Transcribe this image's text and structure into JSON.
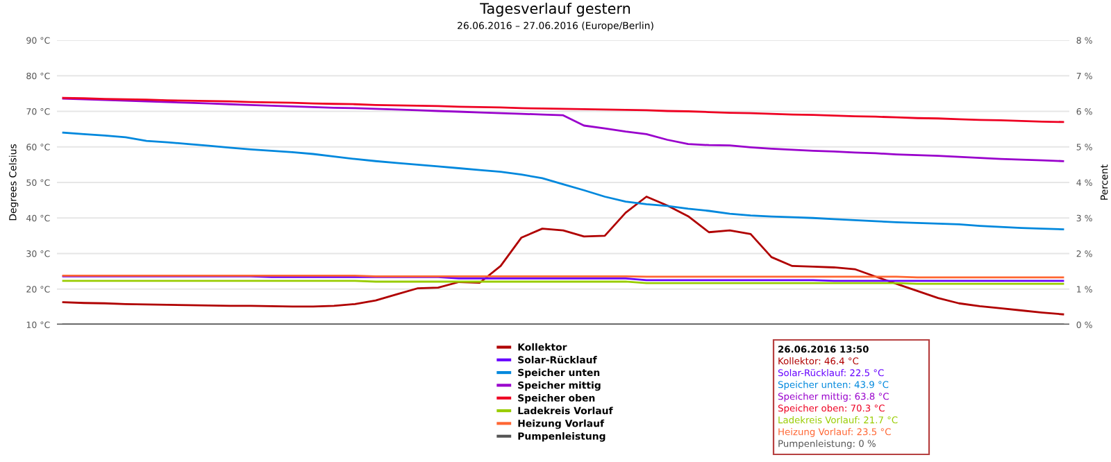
{
  "chart_data": {
    "type": "line",
    "title": "Tagesverlauf gestern",
    "subtitle": "26.06.2016 – 27.06.2016 (Europe/Berlin)",
    "ylabel": "Degrees Celsius",
    "y2label": "Percent",
    "categories": [
      null,
      null,
      null,
      null,
      null,
      null,
      null,
      null,
      null,
      null,
      null,
      null,
      null,
      null,
      null,
      null,
      null,
      null,
      null,
      null,
      null,
      null,
      null,
      null,
      null,
      null,
      null,
      null,
      null,
      null,
      null,
      null,
      null,
      null,
      null,
      null,
      null,
      null,
      null,
      null,
      null,
      null,
      null,
      null,
      null,
      null,
      null,
      null,
      null
    ],
    "series": [
      {
        "name": "Kollektor",
        "color": "#b00000",
        "values": [
          16.3,
          16.1,
          16.0,
          15.8,
          15.7,
          15.6,
          15.5,
          15.4,
          15.3,
          15.3,
          15.2,
          15.1,
          15.1,
          15.3,
          15.8,
          16.8,
          18.5,
          20.2,
          20.4,
          22.0,
          21.8,
          26.5,
          34.5,
          37.0,
          36.5,
          34.8,
          35.0,
          41.5,
          46.0,
          43.5,
          40.5,
          36.0,
          36.5,
          35.5,
          29.0,
          26.5,
          26.3,
          26.1,
          25.6,
          23.5,
          21.5,
          19.5,
          17.5,
          16.0,
          15.2,
          14.6,
          14.0,
          13.4,
          12.9
        ]
      },
      {
        "name": "Solar-Rücklauf",
        "color": "#6600ff",
        "values": [
          23.6,
          23.6,
          23.6,
          23.6,
          23.6,
          23.6,
          23.6,
          23.6,
          23.6,
          23.6,
          23.4,
          23.4,
          23.4,
          23.4,
          23.4,
          23.4,
          23.4,
          23.4,
          23.4,
          23.0,
          23.0,
          23.0,
          23.0,
          23.0,
          23.0,
          23.0,
          23.0,
          23.0,
          22.5,
          22.5,
          22.5,
          22.5,
          22.5,
          22.5,
          22.5,
          22.5,
          22.5,
          22.3,
          22.3,
          22.3,
          22.3,
          22.3,
          22.3,
          22.3,
          22.3,
          22.3,
          22.3,
          22.3,
          22.3
        ]
      },
      {
        "name": "Speicher unten",
        "color": "#0088dd",
        "values": [
          64.0,
          63.6,
          63.2,
          62.7,
          61.7,
          61.3,
          60.8,
          60.3,
          59.8,
          59.3,
          58.9,
          58.5,
          58.0,
          57.3,
          56.6,
          56.0,
          55.5,
          55.0,
          54.5,
          54.0,
          53.5,
          53.0,
          52.2,
          51.2,
          49.5,
          47.8,
          46.0,
          44.6,
          43.9,
          43.4,
          42.6,
          42.0,
          41.2,
          40.7,
          40.4,
          40.2,
          40.0,
          39.7,
          39.4,
          39.1,
          38.8,
          38.6,
          38.4,
          38.2,
          37.8,
          37.5,
          37.2,
          37.0,
          36.8
        ]
      },
      {
        "name": "Speicher mittig",
        "color": "#9900cc",
        "values": [
          73.6,
          73.4,
          73.2,
          73.0,
          72.8,
          72.6,
          72.4,
          72.2,
          72.0,
          71.8,
          71.6,
          71.4,
          71.2,
          71.0,
          70.9,
          70.7,
          70.5,
          70.3,
          70.1,
          69.9,
          69.7,
          69.5,
          69.3,
          69.1,
          68.9,
          66.0,
          65.2,
          64.3,
          63.6,
          62.0,
          60.8,
          60.5,
          60.4,
          59.9,
          59.5,
          59.2,
          58.9,
          58.7,
          58.4,
          58.2,
          57.9,
          57.7,
          57.5,
          57.2,
          56.9,
          56.6,
          56.4,
          56.2,
          56.0
        ]
      },
      {
        "name": "Speicher oben",
        "color": "#ee0022",
        "values": [
          73.8,
          73.7,
          73.5,
          73.4,
          73.3,
          73.1,
          73.0,
          72.9,
          72.8,
          72.6,
          72.5,
          72.4,
          72.2,
          72.1,
          72.0,
          71.8,
          71.7,
          71.6,
          71.5,
          71.3,
          71.2,
          71.1,
          70.9,
          70.8,
          70.7,
          70.6,
          70.5,
          70.4,
          70.3,
          70.1,
          70.0,
          69.8,
          69.6,
          69.5,
          69.3,
          69.1,
          69.0,
          68.8,
          68.6,
          68.5,
          68.3,
          68.1,
          68.0,
          67.8,
          67.6,
          67.5,
          67.3,
          67.1,
          67.0
        ]
      },
      {
        "name": "Ladekreis Vorlauf",
        "color": "#99cc00",
        "values": [
          22.3,
          22.3,
          22.3,
          22.3,
          22.3,
          22.3,
          22.3,
          22.3,
          22.3,
          22.3,
          22.3,
          22.3,
          22.3,
          22.3,
          22.3,
          22.1,
          22.1,
          22.1,
          22.1,
          22.1,
          22.1,
          22.1,
          22.1,
          22.1,
          22.1,
          22.1,
          22.1,
          22.1,
          21.7,
          21.7,
          21.7,
          21.7,
          21.7,
          21.7,
          21.7,
          21.7,
          21.7,
          21.7,
          21.7,
          21.7,
          21.7,
          21.5,
          21.5,
          21.5,
          21.5,
          21.5,
          21.5,
          21.5,
          21.5
        ]
      },
      {
        "name": "Heizung Vorlauf",
        "color": "#ff6633",
        "values": [
          23.8,
          23.8,
          23.8,
          23.8,
          23.8,
          23.8,
          23.8,
          23.8,
          23.8,
          23.8,
          23.8,
          23.8,
          23.8,
          23.8,
          23.8,
          23.6,
          23.6,
          23.6,
          23.6,
          23.6,
          23.6,
          23.6,
          23.6,
          23.6,
          23.6,
          23.6,
          23.6,
          23.6,
          23.5,
          23.5,
          23.5,
          23.5,
          23.5,
          23.5,
          23.5,
          23.5,
          23.5,
          23.5,
          23.5,
          23.5,
          23.5,
          23.3,
          23.3,
          23.3,
          23.3,
          23.3,
          23.3,
          23.3,
          23.3
        ]
      },
      {
        "name": "Pumpenleistung",
        "color": "#555555",
        "axis": "y2",
        "values": [
          0,
          0,
          0,
          0,
          0,
          0,
          0,
          0,
          0,
          0,
          0,
          0,
          0,
          0,
          0,
          0,
          0,
          0,
          0,
          0,
          0,
          0,
          0,
          0,
          0,
          0,
          0,
          0,
          0,
          0,
          0,
          0,
          0,
          0,
          0,
          0,
          0,
          0,
          0,
          0,
          0,
          0,
          0,
          0,
          0,
          0,
          0,
          0,
          0
        ]
      }
    ],
    "ylim": [
      10,
      90
    ],
    "yticks": [
      {
        "value": 10,
        "label": "10 °C"
      },
      {
        "value": 20,
        "label": "20 °C"
      },
      {
        "value": 30,
        "label": "30 °C"
      },
      {
        "value": 40,
        "label": "40 °C"
      },
      {
        "value": 50,
        "label": "50 °C"
      },
      {
        "value": 60,
        "label": "60 °C"
      },
      {
        "value": 70,
        "label": "70 °C"
      },
      {
        "value": 80,
        "label": "80 °C"
      },
      {
        "value": 90,
        "label": "90 °C"
      }
    ],
    "y2lim": [
      0,
      8
    ],
    "y2ticks": [
      {
        "value": 0,
        "label": "0 %"
      },
      {
        "value": 1,
        "label": "1 %"
      },
      {
        "value": 2,
        "label": "2 %"
      },
      {
        "value": 3,
        "label": "3 %"
      },
      {
        "value": 4,
        "label": "4 %"
      },
      {
        "value": 5,
        "label": "5 %"
      },
      {
        "value": 6,
        "label": "6 %"
      },
      {
        "value": 7,
        "label": "7 %"
      },
      {
        "value": 8,
        "label": "8 %"
      }
    ],
    "grid": "y",
    "legend": "bottom",
    "marker": "none",
    "line_style": "solid",
    "annotations": [
      "26.06.2016 13:50",
      "Kollektor: 46.4 °C",
      "Solar-Rücklauf: 22.5 °C",
      "Speicher unten: 43.9 °C",
      "Speicher mittig: 63.8 °C",
      "Speicher oben: 70.3 °C",
      "Ladekreis Vorlauf: 21.7 °C",
      "Heizung Vorlauf: 23.5 °C",
      "Pumpenleistung: 0 %"
    ]
  }
}
